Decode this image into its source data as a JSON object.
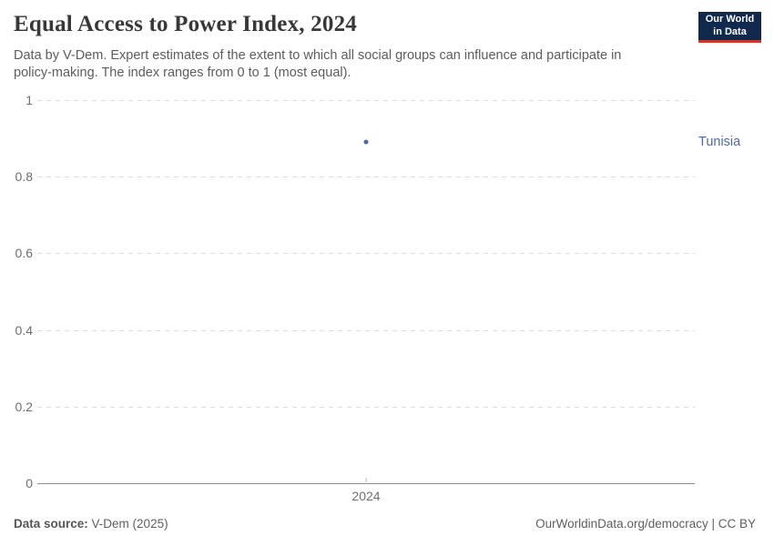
{
  "header": {
    "title": "Equal Access to Power Index, 2024",
    "subtitle": "Data by V-Dem. Expert estimates of the extent to which all social groups can influence and participate in policy-making. The index ranges from 0 to 1 (most equal).",
    "logo": {
      "line1": "Our World",
      "line2": "in Data",
      "bg_color": "#10294c",
      "accent_color": "#c9392b"
    }
  },
  "chart_data": {
    "type": "scatter",
    "title": "Equal Access to Power Index, 2024",
    "xlabel": "",
    "ylabel": "",
    "categories": [
      2024
    ],
    "series": [
      {
        "name": "Tunisia",
        "color": "#4c6a9c",
        "x": [
          2024
        ],
        "values": [
          0.89
        ]
      }
    ],
    "x_ticks": [
      2024
    ],
    "y_ticks": [
      0,
      0.2,
      0.4,
      0.6,
      0.8,
      1
    ],
    "ylim": [
      0,
      1
    ],
    "grid": "horizontal-dashed",
    "gridline_color": "#dcdcdc",
    "axis_color": "#8f8f8f",
    "tick_label_color": "#6e6e6e",
    "legend_position": "label-right-of-point"
  },
  "footer": {
    "source_label": "Data source:",
    "source_value": "V-Dem (2025)",
    "link": "OurWorldinData.org/democracy | CC BY"
  }
}
